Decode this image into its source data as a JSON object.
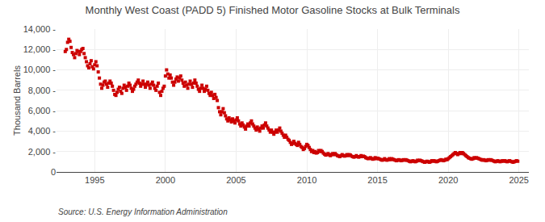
{
  "chart_data": {
    "type": "scatter",
    "title": "Monthly West Coast (PADD 5) Finished Motor Gasoline Stocks at Bulk Terminals",
    "y_label": "Thousand Barrels",
    "annotations": [
      {
        "text": "Source: U.S. Energy Information Administration"
      }
    ],
    "color": "#cc0000",
    "marker": "square",
    "grid": true,
    "xlim": [
      1992.3,
      2025.7
    ],
    "xticks": [
      1995,
      2000,
      2005,
      2010,
      2015,
      2020,
      2025
    ],
    "ylim": [
      0,
      14000
    ],
    "yticks": [
      0,
      {
        "value": 2000,
        "label": "2,000 -"
      },
      {
        "value": 4000,
        "label": "4,000 -"
      },
      {
        "value": 6000,
        "label": "6,000 -"
      },
      {
        "value": 8000,
        "label": "8,000 -"
      },
      {
        "value": 10000,
        "label": "10,000 -"
      },
      {
        "value": 12000,
        "label": "12,000 -"
      },
      {
        "value": 14000,
        "label": "14,000 -"
      }
    ],
    "x": [
      1992.917,
      1993.0,
      1993.083,
      1993.167,
      1993.25,
      1993.333,
      1993.417,
      1993.5,
      1993.583,
      1993.667,
      1993.75,
      1993.833,
      1993.917,
      1994.0,
      1994.083,
      1994.167,
      1994.25,
      1994.333,
      1994.417,
      1994.5,
      1994.583,
      1994.667,
      1994.75,
      1994.833,
      1994.917,
      1995.0,
      1995.083,
      1995.167,
      1995.25,
      1995.333,
      1995.417,
      1995.5,
      1995.583,
      1995.667,
      1995.75,
      1995.833,
      1995.917,
      1996.0,
      1996.083,
      1996.167,
      1996.25,
      1996.333,
      1996.417,
      1996.5,
      1996.583,
      1996.667,
      1996.75,
      1996.833,
      1996.917,
      1997.0,
      1997.083,
      1997.167,
      1997.25,
      1997.333,
      1997.417,
      1997.5,
      1997.583,
      1997.667,
      1997.75,
      1997.833,
      1997.917,
      1998.0,
      1998.083,
      1998.167,
      1998.25,
      1998.333,
      1998.417,
      1998.5,
      1998.583,
      1998.667,
      1998.75,
      1998.833,
      1998.917,
      1999.0,
      1999.083,
      1999.167,
      1999.25,
      1999.333,
      1999.417,
      1999.5,
      1999.583,
      1999.667,
      1999.75,
      1999.833,
      1999.917,
      2000.0,
      2000.083,
      2000.167,
      2000.25,
      2000.333,
      2000.417,
      2000.5,
      2000.583,
      2000.667,
      2000.75,
      2000.833,
      2000.917,
      2001.0,
      2001.083,
      2001.167,
      2001.25,
      2001.333,
      2001.417,
      2001.5,
      2001.583,
      2001.667,
      2001.75,
      2001.833,
      2001.917,
      2002.0,
      2002.083,
      2002.167,
      2002.25,
      2002.333,
      2002.417,
      2002.5,
      2002.583,
      2002.667,
      2002.75,
      2002.833,
      2002.917,
      2003.0,
      2003.083,
      2003.167,
      2003.25,
      2003.333,
      2003.417,
      2003.5,
      2003.583,
      2003.667,
      2003.75,
      2003.833,
      2003.917,
      2004.0,
      2004.083,
      2004.167,
      2004.25,
      2004.333,
      2004.417,
      2004.5,
      2004.583,
      2004.667,
      2004.75,
      2004.833,
      2004.917,
      2005.0,
      2005.083,
      2005.167,
      2005.25,
      2005.333,
      2005.417,
      2005.5,
      2005.583,
      2005.667,
      2005.75,
      2005.833,
      2005.917,
      2006.0,
      2006.083,
      2006.167,
      2006.25,
      2006.333,
      2006.417,
      2006.5,
      2006.583,
      2006.667,
      2006.75,
      2006.833,
      2006.917,
      2007.0,
      2007.083,
      2007.167,
      2007.25,
      2007.333,
      2007.417,
      2007.5,
      2007.583,
      2007.667,
      2007.75,
      2007.833,
      2007.917,
      2008.0,
      2008.083,
      2008.167,
      2008.25,
      2008.333,
      2008.417,
      2008.5,
      2008.583,
      2008.667,
      2008.75,
      2008.833,
      2008.917,
      2009.0,
      2009.083,
      2009.167,
      2009.25,
      2009.333,
      2009.417,
      2009.5,
      2009.583,
      2009.667,
      2009.75,
      2009.833,
      2009.917,
      2010.0,
      2010.083,
      2010.167,
      2010.25,
      2010.333,
      2010.417,
      2010.5,
      2010.583,
      2010.667,
      2010.75,
      2010.833,
      2010.917,
      2011.0,
      2011.083,
      2011.167,
      2011.25,
      2011.333,
      2011.417,
      2011.5,
      2011.583,
      2011.667,
      2011.75,
      2011.833,
      2011.917,
      2012.0,
      2012.083,
      2012.167,
      2012.25,
      2012.333,
      2012.417,
      2012.5,
      2012.583,
      2012.667,
      2012.75,
      2012.833,
      2012.917,
      2013.0,
      2013.083,
      2013.167,
      2013.25,
      2013.333,
      2013.417,
      2013.5,
      2013.583,
      2013.667,
      2013.75,
      2013.833,
      2013.917,
      2014.0,
      2014.083,
      2014.167,
      2014.25,
      2014.333,
      2014.417,
      2014.5,
      2014.583,
      2014.667,
      2014.75,
      2014.833,
      2014.917,
      2015.0,
      2015.083,
      2015.167,
      2015.25,
      2015.333,
      2015.417,
      2015.5,
      2015.583,
      2015.667,
      2015.75,
      2015.833,
      2015.917,
      2016.0,
      2016.083,
      2016.167,
      2016.25,
      2016.333,
      2016.417,
      2016.5,
      2016.583,
      2016.667,
      2016.75,
      2016.833,
      2016.917,
      2017.0,
      2017.083,
      2017.167,
      2017.25,
      2017.333,
      2017.417,
      2017.5,
      2017.583,
      2017.667,
      2017.75,
      2017.833,
      2017.917,
      2018.0,
      2018.083,
      2018.167,
      2018.25,
      2018.333,
      2018.417,
      2018.5,
      2018.583,
      2018.667,
      2018.75,
      2018.833,
      2018.917,
      2019.0,
      2019.083,
      2019.167,
      2019.25,
      2019.333,
      2019.417,
      2019.5,
      2019.583,
      2019.667,
      2019.75,
      2019.833,
      2019.917,
      2020.0,
      2020.083,
      2020.167,
      2020.25,
      2020.333,
      2020.417,
      2020.5,
      2020.583,
      2020.667,
      2020.75,
      2020.833,
      2020.917,
      2021.0,
      2021.083,
      2021.167,
      2021.25,
      2021.333,
      2021.417,
      2021.5,
      2021.583,
      2021.667,
      2021.75,
      2021.833,
      2021.917,
      2022.0,
      2022.083,
      2022.167,
      2022.25,
      2022.333,
      2022.417,
      2022.5,
      2022.583,
      2022.667,
      2022.75,
      2022.833,
      2022.917,
      2023.0,
      2023.083,
      2023.167,
      2023.25,
      2023.333,
      2023.417,
      2023.5,
      2023.583,
      2023.667,
      2023.75,
      2023.833,
      2023.917,
      2024.0,
      2024.083,
      2024.167,
      2024.25,
      2024.333,
      2024.417,
      2024.5,
      2024.583,
      2024.667,
      2024.75,
      2024.833,
      2024.917
    ],
    "values": [
      11800,
      12000,
      12700,
      13000,
      12800,
      12200,
      11700,
      11500,
      11200,
      11600,
      11900,
      11800,
      11500,
      11800,
      12000,
      12100,
      11600,
      11200,
      10800,
      10400,
      10200,
      10600,
      10900,
      10300,
      10100,
      10500,
      10800,
      10400,
      9800,
      9200,
      8600,
      8200,
      8500,
      8800,
      8900,
      8600,
      8300,
      8700,
      8900,
      8700,
      8400,
      8000,
      7600,
      7500,
      7800,
      8100,
      8300,
      7900,
      7700,
      8200,
      8500,
      8300,
      8000,
      8400,
      8700,
      8500,
      8200,
      7900,
      8100,
      8400,
      8600,
      8800,
      9000,
      8700,
      8400,
      8600,
      8900,
      8600,
      8300,
      8600,
      8800,
      8500,
      8200,
      8600,
      8800,
      8500,
      8200,
      8000,
      8400,
      8700,
      7800,
      7500,
      7900,
      8200,
      8400,
      9400,
      10000,
      9600,
      9200,
      9500,
      9200,
      8800,
      8500,
      8800,
      9100,
      9300,
      8900,
      9200,
      9400,
      9000,
      8700,
      8400,
      8800,
      8500,
      8200,
      8600,
      8900,
      8600,
      8300,
      8700,
      9000,
      8700,
      8400,
      8100,
      7900,
      8200,
      8500,
      8200,
      7900,
      8100,
      8400,
      8000,
      7700,
      7500,
      7800,
      7500,
      7200,
      7600,
      7300,
      7000,
      6300,
      5900,
      5600,
      5900,
      6200,
      5800,
      5500,
      5200,
      5000,
      5300,
      5100,
      4900,
      5200,
      5000,
      4800,
      5100,
      5300,
      5000,
      4700,
      4500,
      4800,
      4600,
      4400,
      4200,
      4500,
      4700,
      4500,
      4800,
      5000,
      4700,
      4500,
      4300,
      4100,
      4400,
      4200,
      4000,
      4300,
      4500,
      4300,
      4600,
      4800,
      4500,
      4300,
      4100,
      3900,
      4100,
      3900,
      3700,
      3900,
      4100,
      3900,
      4100,
      4300,
      4000,
      3800,
      3600,
      3400,
      3600,
      3400,
      3200,
      3100,
      2900,
      2700,
      2800,
      3000,
      2800,
      2700,
      2600,
      2900,
      2700,
      2500,
      2400,
      2200,
      2300,
      2500,
      2700,
      2600,
      2400,
      2200,
      2000,
      2100,
      1900,
      2000,
      1850,
      1900,
      2100,
      2000,
      2100,
      2000,
      1850,
      1750,
      1650,
      1700,
      1800,
      1700,
      1600,
      1700,
      1800,
      1700,
      1800,
      1700,
      1600,
      1550,
      1500,
      1600,
      1700,
      1600,
      1550,
      1600,
      1700,
      1600,
      1700,
      1650,
      1550,
      1500,
      1450,
      1500,
      1600,
      1500,
      1450,
      1500,
      1600,
      1500,
      1550,
      1500,
      1400,
      1350,
      1300,
      1350,
      1400,
      1300,
      1250,
      1300,
      1400,
      1300,
      1350,
      1300,
      1250,
      1200,
      1150,
      1200,
      1300,
      1200,
      1150,
      1200,
      1300,
      1200,
      1300,
      1250,
      1200,
      1150,
      1100,
      1150,
      1200,
      1150,
      1100,
      1150,
      1200,
      1150,
      1200,
      1150,
      1100,
      1050,
      1000,
      1050,
      1100,
      1050,
      1000,
      1050,
      1150,
      1100,
      1150,
      1100,
      1050,
      1000,
      950,
      1000,
      1050,
      1000,
      950,
      1000,
      1100,
      1050,
      1100,
      1050,
      1000,
      1050,
      1100,
      1150,
      1200,
      1150,
      1100,
      1150,
      1250,
      1200,
      1300,
      1400,
      1500,
      1600,
      1700,
      1800,
      1900,
      1800,
      1700,
      1800,
      1900,
      1800,
      1900,
      1800,
      1700,
      1600,
      1500,
      1400,
      1350,
      1300,
      1250,
      1300,
      1400,
      1350,
      1400,
      1350,
      1300,
      1250,
      1200,
      1150,
      1200,
      1150,
      1100,
      1150,
      1200,
      1150,
      1200,
      1150,
      1100,
      1050,
      1000,
      1050,
      1100,
      1050,
      1000,
      1050,
      1100,
      1050,
      1100,
      1050,
      1000,
      1050,
      1100,
      1050,
      1000,
      950,
      1000,
      1050,
      1100,
      1050
    ]
  }
}
